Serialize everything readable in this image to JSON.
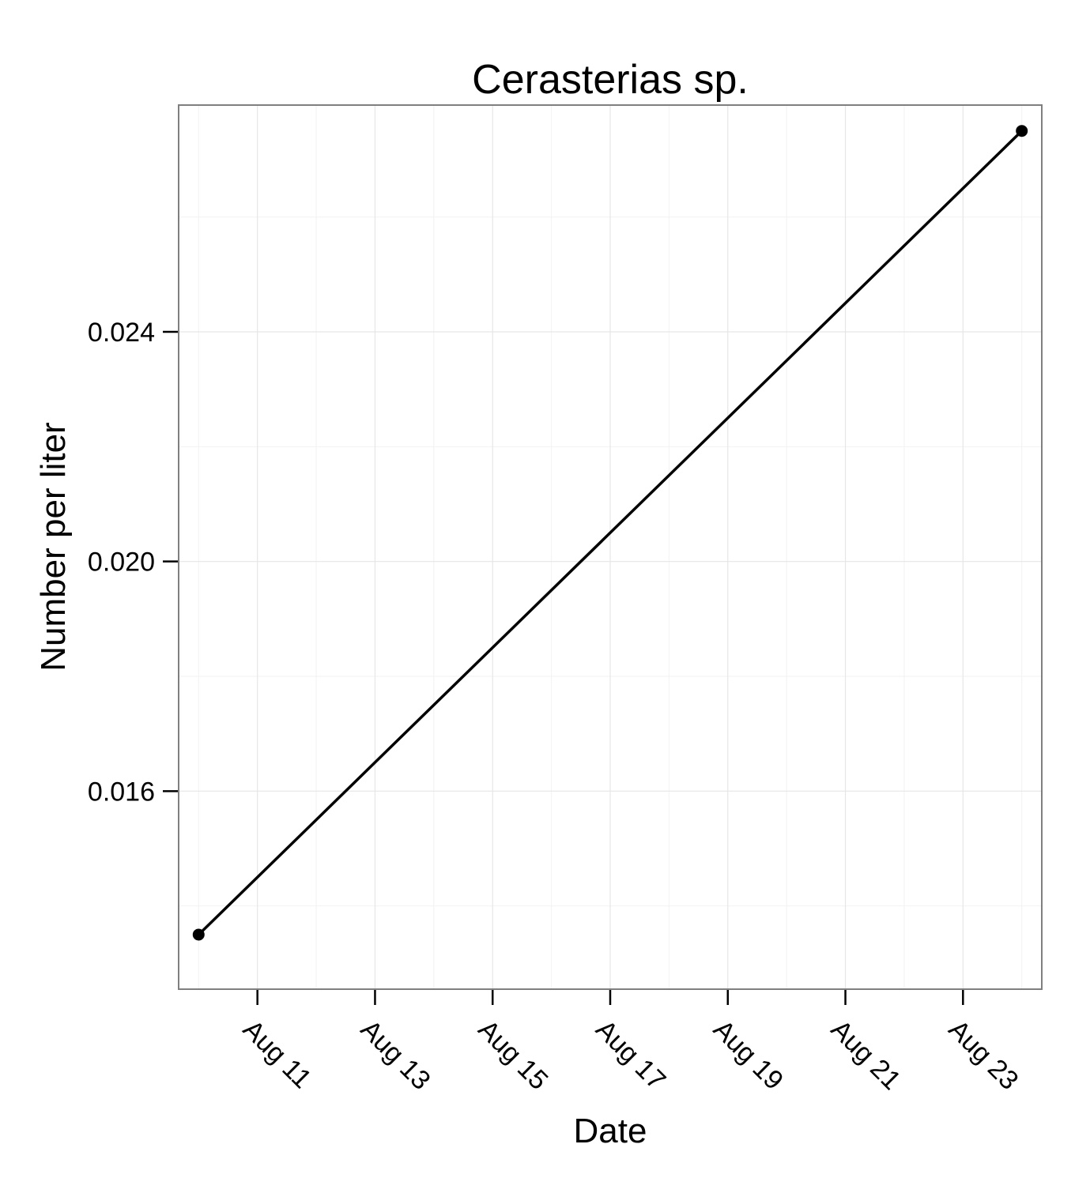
{
  "chart_data": {
    "type": "line",
    "title": "Cerasterias sp.",
    "xlabel": "Date",
    "ylabel": "Number per liter",
    "x": [
      "Aug 10",
      "Aug 24"
    ],
    "series": [
      {
        "values": [
          0.0135,
          0.0275
        ]
      }
    ],
    "markers": true,
    "xlim": [
      "Aug 9.66",
      "Aug 24.34"
    ],
    "ylim": [
      0.01255,
      0.02795
    ],
    "xticks": [
      {
        "day": 11,
        "label": "Aug 11"
      },
      {
        "day": 13,
        "label": "Aug 13"
      },
      {
        "day": 15,
        "label": "Aug 15"
      },
      {
        "day": 17,
        "label": "Aug 17"
      },
      {
        "day": 19,
        "label": "Aug 19"
      },
      {
        "day": 21,
        "label": "Aug 21"
      },
      {
        "day": 23,
        "label": "Aug 23"
      }
    ],
    "yticks": [
      {
        "value": 0.016,
        "label": "0.016"
      },
      {
        "value": 0.02,
        "label": "0.020"
      },
      {
        "value": 0.024,
        "label": "0.024"
      }
    ],
    "grid": true,
    "legend": "none",
    "colors": {
      "line": "#000000",
      "panel_border": "#7f7f7f",
      "grid_major": "#e6e6e6",
      "grid_minor": "#f2f2f2",
      "axis_ticks": "#000000"
    }
  }
}
